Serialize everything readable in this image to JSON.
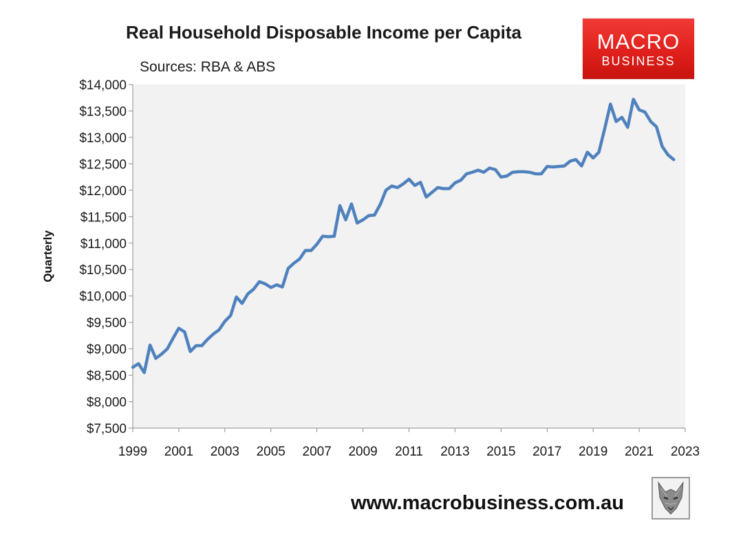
{
  "chart_data": {
    "type": "line",
    "title": "Real Household Disposable Income per Capita",
    "subtitle": "Sources: RBA & ABS",
    "xlabel": "",
    "ylabel": "Quarterly",
    "xlim": [
      1999,
      2023
    ],
    "ylim": [
      7500,
      14000
    ],
    "x_ticks": [
      1999,
      2001,
      2003,
      2005,
      2007,
      2009,
      2011,
      2013,
      2015,
      2017,
      2019,
      2021,
      2023
    ],
    "x_tick_labels": [
      "1999",
      "2001",
      "2003",
      "2005",
      "2007",
      "2009",
      "2011",
      "2013",
      "2015",
      "2017",
      "2019",
      "2021",
      "2023"
    ],
    "y_ticks": [
      7500,
      8000,
      8500,
      9000,
      9500,
      10000,
      10500,
      11000,
      11500,
      12000,
      12500,
      13000,
      13500,
      14000
    ],
    "y_tick_labels": [
      "$7,500",
      "$8,000",
      "$8,500",
      "$9,000",
      "$9,500",
      "$10,000",
      "$10,500",
      "$11,000",
      "$11,500",
      "$12,000",
      "$12,500",
      "$13,000",
      "$13,500",
      "$14,000"
    ],
    "grid": false,
    "legend": "none",
    "line_color": "#4f81bd",
    "plot_background": "#f2f2f2",
    "series": [
      {
        "x": [
          1999.0,
          1999.25,
          1999.5,
          1999.75,
          2000.0,
          2000.25,
          2000.5,
          2000.75,
          2001.0,
          2001.25,
          2001.5,
          2001.75,
          2002.0,
          2002.25,
          2002.5,
          2002.75,
          2003.0,
          2003.25,
          2003.5,
          2003.75,
          2004.0,
          2004.25,
          2004.5,
          2004.75,
          2005.0,
          2005.25,
          2005.5,
          2005.75,
          2006.0,
          2006.25,
          2006.5,
          2006.75,
          2007.0,
          2007.25,
          2007.5,
          2007.75,
          2008.0,
          2008.25,
          2008.5,
          2008.75,
          2009.0,
          2009.25,
          2009.5,
          2009.75,
          2010.0,
          2010.25,
          2010.5,
          2010.75,
          2011.0,
          2011.25,
          2011.5,
          2011.75,
          2012.0,
          2012.25,
          2012.5,
          2012.75,
          2013.0,
          2013.25,
          2013.5,
          2013.75,
          2014.0,
          2014.25,
          2014.5,
          2014.75,
          2015.0,
          2015.25,
          2015.5,
          2015.75,
          2016.0,
          2016.25,
          2016.5,
          2016.75,
          2017.0,
          2017.25,
          2017.5,
          2017.75,
          2018.0,
          2018.25,
          2018.5,
          2018.75,
          2019.0,
          2019.25,
          2019.5,
          2019.75,
          2020.0,
          2020.25,
          2020.5,
          2020.75,
          2021.0,
          2021.25,
          2021.5,
          2021.75,
          2022.0,
          2022.25,
          2022.5
        ],
        "values": [
          8650,
          8720,
          8550,
          9070,
          8820,
          8900,
          9000,
          9200,
          9390,
          9320,
          8950,
          9060,
          9060,
          9180,
          9280,
          9360,
          9520,
          9630,
          9980,
          9860,
          10040,
          10130,
          10270,
          10230,
          10160,
          10210,
          10170,
          10520,
          10620,
          10700,
          10860,
          10860,
          10980,
          11130,
          11120,
          11130,
          11710,
          11440,
          11740,
          11380,
          11440,
          11520,
          11530,
          11730,
          12000,
          12080,
          12050,
          12120,
          12210,
          12090,
          12150,
          11870,
          11960,
          12050,
          12030,
          12030,
          12140,
          12190,
          12310,
          12340,
          12380,
          12340,
          12420,
          12390,
          12250,
          12270,
          12340,
          12350,
          12350,
          12340,
          12310,
          12310,
          12450,
          12440,
          12450,
          12460,
          12550,
          12580,
          12460,
          12720,
          12610,
          12720,
          13160,
          13630,
          13300,
          13380,
          13190,
          13720,
          13520,
          13480,
          13300,
          13200,
          12830,
          12670,
          12580
        ]
      }
    ]
  },
  "footer": {
    "url": "www.macrobusiness.com.au"
  },
  "logo": {
    "line1": "MACRO",
    "line2": "BUSINESS",
    "color": "#e0201c"
  }
}
